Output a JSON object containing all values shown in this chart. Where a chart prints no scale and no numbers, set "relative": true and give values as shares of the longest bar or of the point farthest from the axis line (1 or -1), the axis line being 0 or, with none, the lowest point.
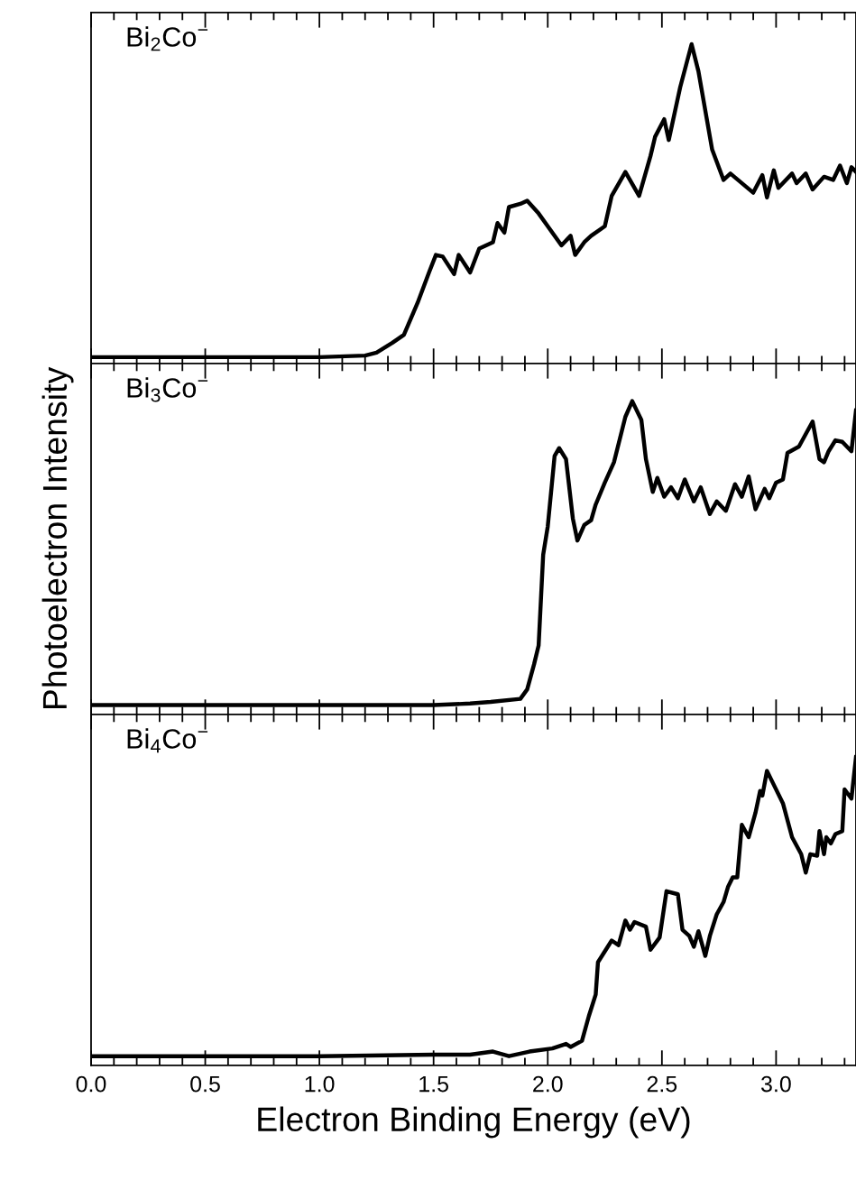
{
  "chart_data": [
    {
      "type": "line",
      "title": "Bi$_{2}$Co$^{−}$",
      "relative": true,
      "xlim": [
        0,
        3.35
      ],
      "xticks": [
        {
          "value": 0,
          "label": null
        },
        {
          "value": 0.5,
          "label": null
        },
        {
          "value": 1,
          "label": null
        },
        {
          "value": 1.5,
          "label": null
        },
        {
          "value": 2,
          "label": null
        },
        {
          "value": 2.5,
          "label": null
        },
        {
          "value": 3,
          "label": null
        }
      ],
      "tick_labels": false,
      "grid": false,
      "legend": false,
      "marker": "none",
      "line_style": "solid",
      "series": [
        {
          "color": "#000000",
          "x": [
            0,
            0.5,
            1.0,
            1.2,
            1.25,
            1.32,
            1.37,
            1.43,
            1.48,
            1.51,
            1.54,
            1.59,
            1.61,
            1.66,
            1.7,
            1.76,
            1.78,
            1.81,
            1.83,
            1.88,
            1.91,
            1.96,
            2.0,
            2.06,
            2.1,
            2.12,
            2.16,
            2.19,
            2.25,
            2.28,
            2.34,
            2.4,
            2.45,
            2.47,
            2.51,
            2.53,
            2.58,
            2.63,
            2.66,
            2.72,
            2.77,
            2.8,
            2.9,
            2.94,
            2.96,
            2.99,
            3.01,
            3.07,
            3.09,
            3.13,
            3.16,
            3.21,
            3.25,
            3.28,
            3.31,
            3.33,
            3.35
          ],
          "values": [
            0.02,
            0.02,
            0.02,
            0.025,
            0.034,
            0.065,
            0.09,
            0.19,
            0.285,
            0.34,
            0.335,
            0.28,
            0.34,
            0.285,
            0.36,
            0.38,
            0.44,
            0.41,
            0.49,
            0.5,
            0.51,
            0.47,
            0.43,
            0.37,
            0.4,
            0.34,
            0.38,
            0.4,
            0.43,
            0.525,
            0.6,
            0.525,
            0.65,
            0.71,
            0.765,
            0.7,
            0.865,
            1.0,
            0.915,
            0.67,
            0.575,
            0.595,
            0.535,
            0.59,
            0.52,
            0.605,
            0.55,
            0.595,
            0.565,
            0.595,
            0.545,
            0.585,
            0.575,
            0.62,
            0.565,
            0.615,
            0.6
          ]
        }
      ]
    },
    {
      "type": "line",
      "title": "Bi$_{3}$Co$^{−}$",
      "ylabel": "Photoelectron Intensity",
      "relative": true,
      "xlim": [
        0,
        3.35
      ],
      "xticks": [
        {
          "value": 0,
          "label": null
        },
        {
          "value": 0.5,
          "label": null
        },
        {
          "value": 1,
          "label": null
        },
        {
          "value": 1.5,
          "label": null
        },
        {
          "value": 2,
          "label": null
        },
        {
          "value": 2.5,
          "label": null
        },
        {
          "value": 3,
          "label": null
        }
      ],
      "tick_labels": false,
      "grid": false,
      "legend": false,
      "marker": "none",
      "line_style": "solid",
      "series": [
        {
          "color": "#000000",
          "x": [
            0,
            0.5,
            1.0,
            1.5,
            1.66,
            1.75,
            1.88,
            1.91,
            1.94,
            1.96,
            1.98,
            2.0,
            2.03,
            2.05,
            2.08,
            2.11,
            2.13,
            2.16,
            2.19,
            2.21,
            2.25,
            2.29,
            2.34,
            2.37,
            2.41,
            2.43,
            2.46,
            2.48,
            2.51,
            2.54,
            2.57,
            2.6,
            2.64,
            2.67,
            2.71,
            2.74,
            2.78,
            2.82,
            2.85,
            2.88,
            2.91,
            2.95,
            2.97,
            3.0,
            3.03,
            3.05,
            3.1,
            3.16,
            3.19,
            3.21,
            3.23,
            3.26,
            3.29,
            3.33,
            3.35
          ],
          "values": [
            0.03,
            0.03,
            0.03,
            0.03,
            0.035,
            0.04,
            0.05,
            0.08,
            0.16,
            0.22,
            0.51,
            0.6,
            0.825,
            0.85,
            0.815,
            0.625,
            0.555,
            0.605,
            0.62,
            0.67,
            0.74,
            0.805,
            0.95,
            1.0,
            0.94,
            0.815,
            0.71,
            0.755,
            0.695,
            0.725,
            0.69,
            0.75,
            0.68,
            0.725,
            0.64,
            0.68,
            0.65,
            0.735,
            0.695,
            0.76,
            0.655,
            0.72,
            0.69,
            0.74,
            0.75,
            0.835,
            0.855,
            0.935,
            0.815,
            0.805,
            0.84,
            0.875,
            0.87,
            0.84,
            0.97
          ]
        }
      ]
    },
    {
      "type": "line",
      "title": "Bi$_{4}$Co$^{−}$",
      "xlabel": "Electron Binding Energy (eV)",
      "relative": true,
      "xlim": [
        0,
        3.35
      ],
      "xticks": [
        {
          "value": 0,
          "label": "0.0"
        },
        {
          "value": 0.5,
          "label": "0.5"
        },
        {
          "value": 1,
          "label": "1.0"
        },
        {
          "value": 1.5,
          "label": "1.5"
        },
        {
          "value": 2,
          "label": "2.0"
        },
        {
          "value": 2.5,
          "label": "2.5"
        },
        {
          "value": 3,
          "label": "3.0"
        }
      ],
      "tick_labels": "x",
      "grid": false,
      "legend": false,
      "marker": "none",
      "line_style": "solid",
      "series": [
        {
          "color": "#000000",
          "x": [
            0,
            0.5,
            1.0,
            1.5,
            1.66,
            1.76,
            1.83,
            1.92,
            2.02,
            2.08,
            2.1,
            2.15,
            2.18,
            2.21,
            2.22,
            2.28,
            2.31,
            2.34,
            2.36,
            2.38,
            2.43,
            2.45,
            2.49,
            2.52,
            2.57,
            2.59,
            2.62,
            2.64,
            2.66,
            2.69,
            2.71,
            2.74,
            2.77,
            2.79,
            2.81,
            2.83,
            2.85,
            2.88,
            2.91,
            2.93,
            2.94,
            2.96,
            2.99,
            3.03,
            3.07,
            3.11,
            3.13,
            3.15,
            3.18,
            3.19,
            3.21,
            3.22,
            3.24,
            3.26,
            3.29,
            3.3,
            3.33,
            3.35
          ],
          "values": [
            0.03,
            0.03,
            0.03,
            0.035,
            0.035,
            0.045,
            0.03,
            0.045,
            0.055,
            0.07,
            0.06,
            0.08,
            0.16,
            0.23,
            0.335,
            0.405,
            0.39,
            0.47,
            0.44,
            0.465,
            0.45,
            0.375,
            0.415,
            0.565,
            0.555,
            0.44,
            0.42,
            0.385,
            0.435,
            0.355,
            0.42,
            0.49,
            0.53,
            0.58,
            0.61,
            0.61,
            0.78,
            0.74,
            0.82,
            0.89,
            0.875,
            0.955,
            0.91,
            0.85,
            0.74,
            0.685,
            0.625,
            0.685,
            0.68,
            0.76,
            0.685,
            0.74,
            0.72,
            0.75,
            0.76,
            0.895,
            0.865,
            1.0
          ]
        }
      ]
    }
  ]
}
